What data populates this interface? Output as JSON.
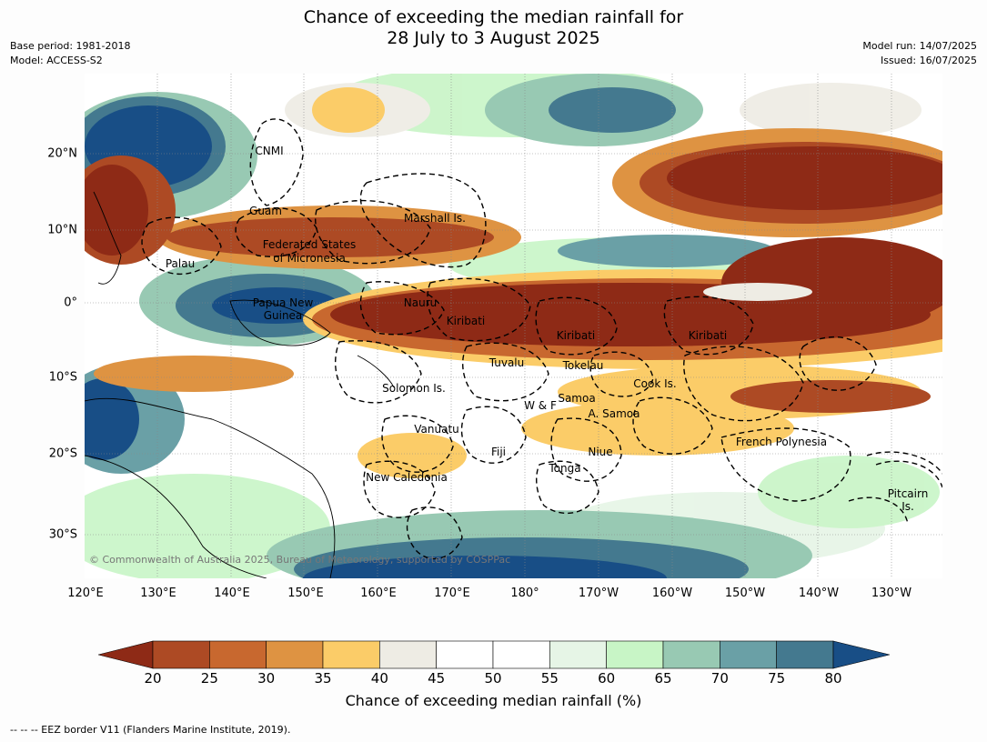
{
  "title_line1": "Chance of exceeding the median rainfall for",
  "title_line2": "28 July to 3 August 2025",
  "left_meta": {
    "base_period": "Base period: 1981-2018",
    "model": "Model: ACCESS-S2"
  },
  "right_meta": {
    "model_run": "Model run: 14/07/2025",
    "issued": "Issued: 16/07/2025"
  },
  "lon_labels": [
    "120°E",
    "130°E",
    "140°E",
    "150°E",
    "160°E",
    "170°E",
    "180°",
    "170°W",
    "160°W",
    "150°W",
    "140°W",
    "130°W"
  ],
  "lat_labels": [
    "20°N",
    "10°N",
    "0°",
    "10°S",
    "20°S",
    "30°S"
  ],
  "places": [
    "CNMI",
    "Guam",
    "Marshall Is.",
    "Federated States",
    "of Micronesia",
    "Palau",
    "Papua New",
    "Guinea",
    "Nauru",
    "Kiribati",
    "Kiribati",
    "Kiribati",
    "Tuvalu",
    "Tokelau",
    "Solomon Is.",
    "Samoa",
    "W & F",
    "A. Samoa",
    "Cook Is.",
    "Vanuatu",
    "Fiji",
    "Niue",
    "French Polynesia",
    "Tonga",
    "New Caledonia",
    "Pitcairn",
    "Is."
  ],
  "copyright": "© Commonwealth of Australia 2025, Bureau of Meteorology, supported by COSPPac",
  "colorbar": {
    "ticks": [
      "20",
      "25",
      "30",
      "35",
      "40",
      "45",
      "50",
      "55",
      "60",
      "65",
      "70",
      "75",
      "80"
    ],
    "colors": [
      "#8e2a16",
      "#ad4a24",
      "#c8682f",
      "#de9342",
      "#fbcc68",
      "#eeece4",
      "#ffffff",
      "#ffffff",
      "#e6f5e6",
      "#c8f5c6",
      "#98c9b3",
      "#6aa0a6",
      "#44798f",
      "#184e86"
    ],
    "title": "Chance of exceeding median rainfall (%)"
  },
  "footnote": "--  --  -- EEZ border V11 (Flanders Marine Institute, 2019)."
}
